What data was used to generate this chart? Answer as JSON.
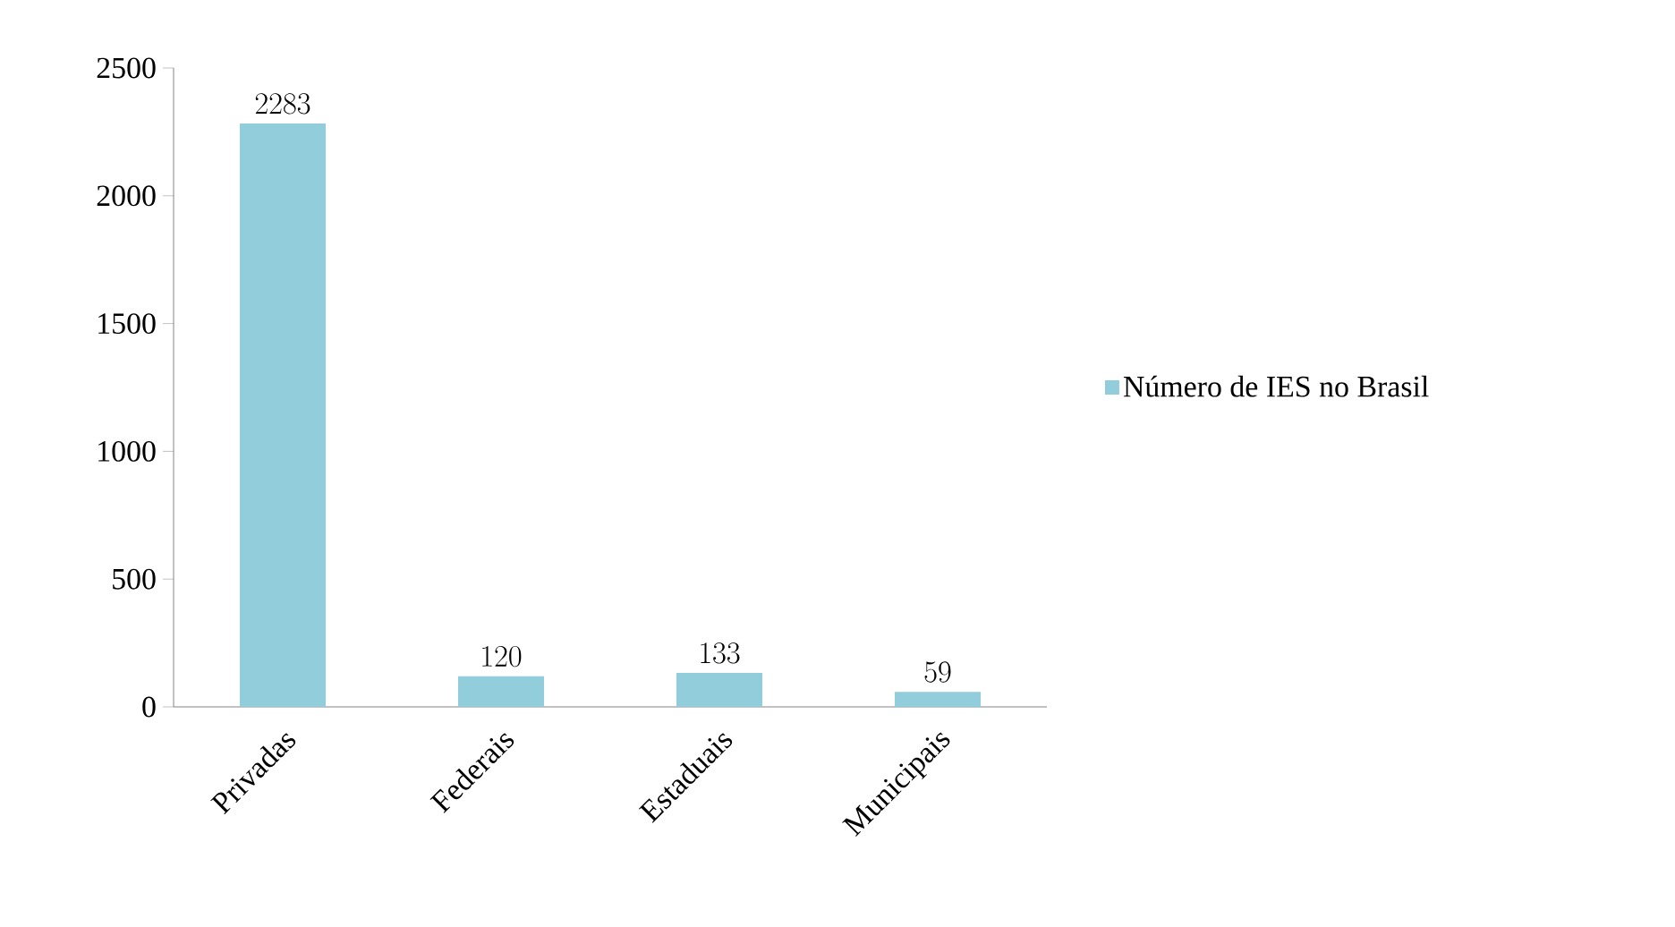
{
  "chart_data": {
    "type": "bar",
    "categories": [
      "Privadas",
      "Federais",
      "Estaduais",
      "Municipais"
    ],
    "series": [
      {
        "name": "Número de IES no Brasil",
        "color": "#92cddc",
        "values": [
          2283,
          120,
          133,
          59
        ]
      }
    ],
    "ylim": [
      0,
      2500
    ],
    "yticks": [
      0,
      500,
      1000,
      1500,
      2000,
      2500
    ],
    "data_labels": true,
    "legend": "right",
    "grid": false
  }
}
